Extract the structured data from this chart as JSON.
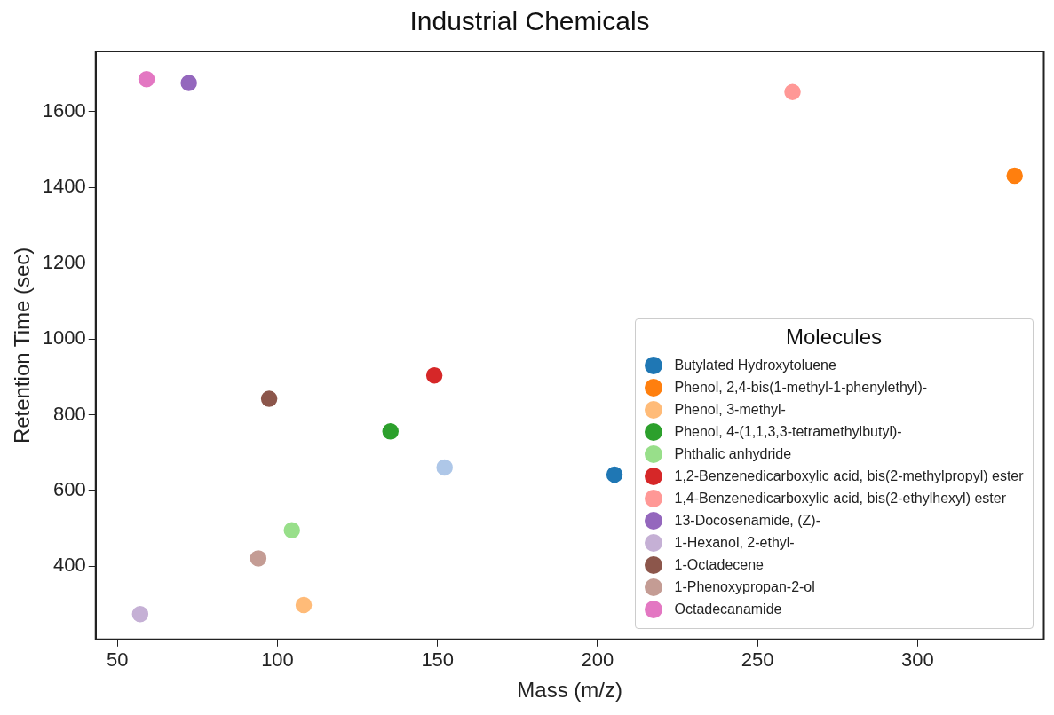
{
  "chart_data": {
    "type": "scatter",
    "title": "Industrial Chemicals",
    "xlabel": "Mass (m/z)",
    "ylabel": "Retention Time (sec)",
    "legend_title": "Molecules",
    "legend": "lower right",
    "grid": false,
    "marker": "circle",
    "xlim": [
      43.2,
      339.4
    ],
    "xticks": [
      50,
      100,
      150,
      200,
      250,
      300
    ],
    "ylim": [
      207,
      1759
    ],
    "yticks": [
      400,
      600,
      800,
      1000,
      1200,
      1400,
      1600
    ],
    "series": [
      {
        "name": "Butylated Hydroxytoluene",
        "color": "#1f77b4",
        "x": [
          205.3
        ],
        "values": [
          642
        ]
      },
      {
        "color": "#aec7e8",
        "x": [
          152.2
        ],
        "values": [
          661
        ]
      },
      {
        "name": "Phenol, 2,4-bis(1-methyl-1-phenylethyl)-",
        "color": "#ff7f0e",
        "x": [
          330.3
        ],
        "values": [
          1431
        ]
      },
      {
        "name": "Phenol, 3-methyl-",
        "color": "#ffbb78",
        "x": [
          108.2
        ],
        "values": [
          298
        ]
      },
      {
        "name": "Phenol, 4-(1,1,3,3-tetramethylbutyl)-",
        "color": "#2ca02c",
        "x": [
          135.3
        ],
        "values": [
          756
        ]
      },
      {
        "name": "Phthalic anhydride",
        "color": "#98df8a",
        "x": [
          104.5
        ],
        "values": [
          495
        ]
      },
      {
        "name": "1,2-Benzenedicarboxylic acid, bis(2-methylpropyl) ester",
        "color": "#d62728",
        "x": [
          149
        ],
        "values": [
          904
        ]
      },
      {
        "name": "1,4-Benzenedicarboxylic acid, bis(2-ethylhexyl) ester",
        "color": "#ff9896",
        "x": [
          260.9
        ],
        "values": [
          1652
        ]
      },
      {
        "name": "13-Docosenamide, (Z)-",
        "color": "#9467bd",
        "x": [
          72.3
        ],
        "values": [
          1676
        ]
      },
      {
        "name": "1-Hexanol, 2-ethyl-",
        "color": "#c5b0d5",
        "x": [
          57.1
        ],
        "values": [
          274
        ]
      },
      {
        "name": "1-Octadecene",
        "color": "#8c564b",
        "x": [
          97.4
        ],
        "values": [
          842
        ]
      },
      {
        "name": "1-Phenoxypropan-2-ol",
        "color": "#c49c94",
        "x": [
          94
        ],
        "values": [
          421
        ]
      },
      {
        "name": "Octadecanamide",
        "color": "#e377c2",
        "x": [
          59.1
        ],
        "values": [
          1686
        ]
      }
    ]
  }
}
